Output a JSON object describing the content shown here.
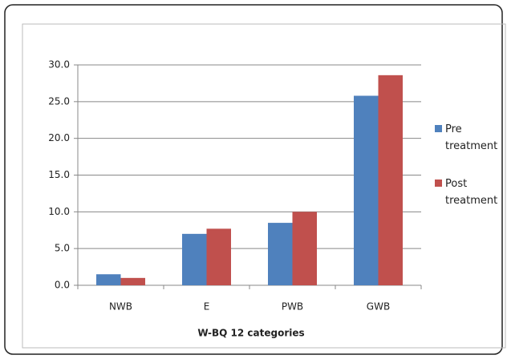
{
  "chart_data": {
    "type": "bar",
    "x_label": "W-BQ 12 categories",
    "categories": [
      "NWB",
      "E",
      "PWB",
      "GWB"
    ],
    "series": [
      {
        "name": "Pre treatment",
        "color": "#4f81bd",
        "values": [
          1.5,
          7.0,
          8.5,
          25.8
        ]
      },
      {
        "name": "Post treatment",
        "color": "#c0504d",
        "values": [
          1.0,
          7.7,
          10.0,
          28.6
        ]
      }
    ],
    "ylim": [
      0,
      30
    ],
    "yticks": [
      {
        "value": 0,
        "label": "0.0"
      },
      {
        "value": 5,
        "label": "5.0"
      },
      {
        "value": 10,
        "label": "10.0"
      },
      {
        "value": 15,
        "label": "15.0"
      },
      {
        "value": 20,
        "label": "20.0"
      },
      {
        "value": 25,
        "label": "25.0"
      },
      {
        "value": 30,
        "label": "30.0"
      }
    ],
    "grid": true,
    "legend": "right"
  }
}
